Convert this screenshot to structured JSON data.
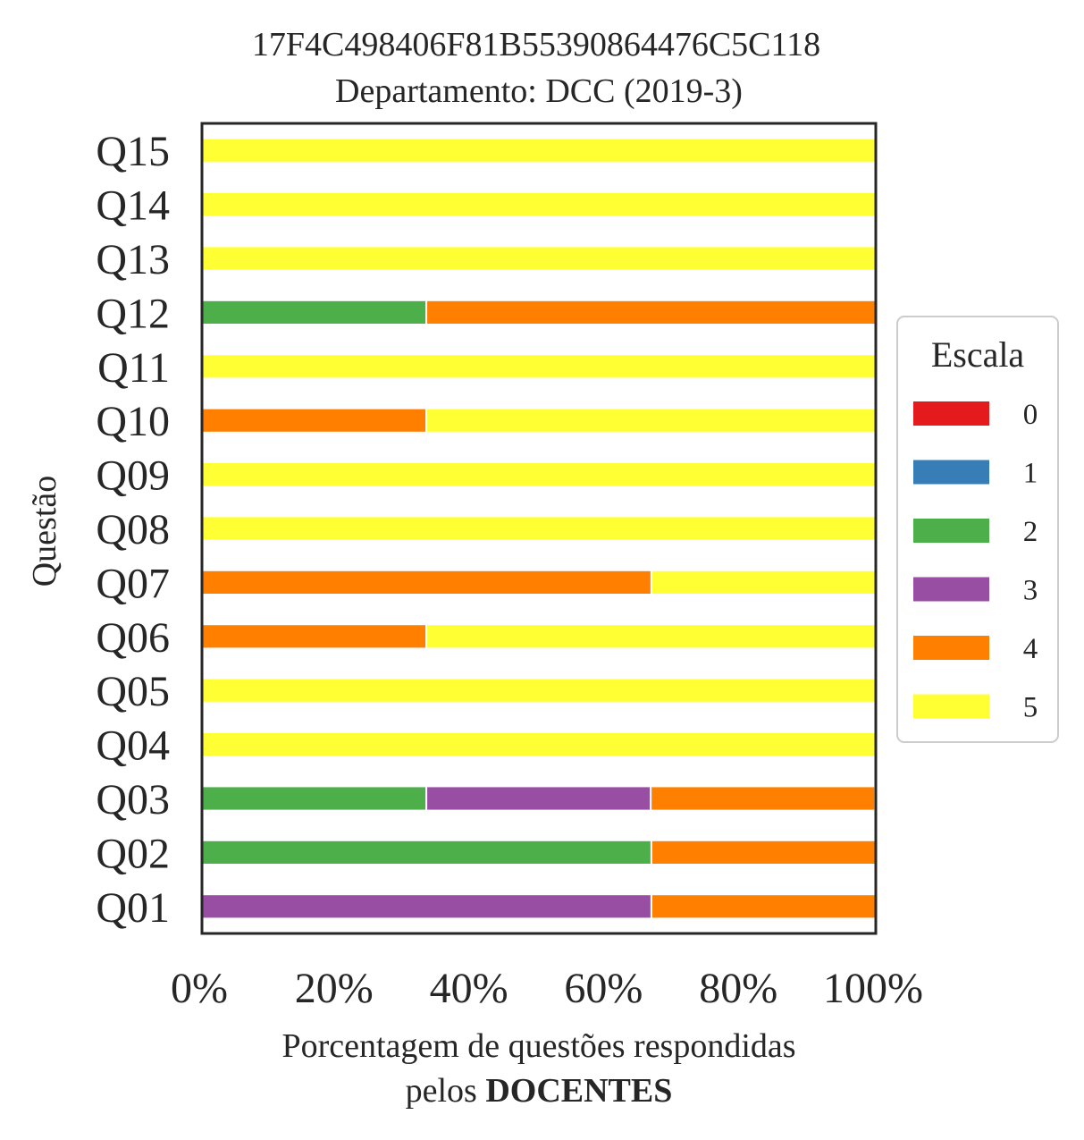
{
  "chart_data": {
    "type": "bar",
    "orientation": "horizontal",
    "stacked": true,
    "normalized": true,
    "title": "17F4C498406F81B55390864476C5C118",
    "subtitle": "Departamento: DCC (2019-3)",
    "xlabel": "Porcentagem de questões respondidas",
    "xlabel_line2_prefix": "pelos",
    "xlabel_line2_bold": "DOCENTES",
    "ylabel": "Questão",
    "xlim": [
      0,
      100
    ],
    "xticks": [
      "0%",
      "20%",
      "40%",
      "60%",
      "80%",
      "100%"
    ],
    "grid": false,
    "legend_position": "right",
    "legend_title": "Escala",
    "categories": [
      "Q01",
      "Q02",
      "Q03",
      "Q04",
      "Q05",
      "Q06",
      "Q07",
      "Q08",
      "Q09",
      "Q10",
      "Q11",
      "Q12",
      "Q13",
      "Q14",
      "Q15"
    ],
    "series": [
      {
        "name": "0",
        "color": "#e41a1c",
        "values": [
          0,
          0,
          0,
          0,
          0,
          0,
          0,
          0,
          0,
          0,
          0,
          0,
          0,
          0,
          0
        ]
      },
      {
        "name": "1",
        "color": "#377eb8",
        "values": [
          0,
          0,
          0,
          0,
          0,
          0,
          0,
          0,
          0,
          0,
          0,
          0,
          0,
          0,
          0
        ]
      },
      {
        "name": "2",
        "color": "#4daf4a",
        "values": [
          0,
          66.7,
          33.3,
          0,
          0,
          0,
          0,
          0,
          0,
          0,
          0,
          33.3,
          0,
          0,
          0
        ]
      },
      {
        "name": "3",
        "color": "#984ea3",
        "values": [
          66.7,
          0,
          33.3,
          0,
          0,
          0,
          0,
          0,
          0,
          0,
          0,
          0,
          0,
          0,
          0
        ]
      },
      {
        "name": "4",
        "color": "#ff7f00",
        "values": [
          33.3,
          33.3,
          33.3,
          0,
          0,
          33.3,
          66.7,
          0,
          0,
          33.3,
          0,
          66.7,
          0,
          0,
          0
        ]
      },
      {
        "name": "5",
        "color": "#ffff33",
        "values": [
          0,
          0,
          0,
          100,
          100,
          66.7,
          33.3,
          100,
          100,
          66.7,
          100,
          0,
          100,
          100,
          100
        ]
      }
    ]
  }
}
